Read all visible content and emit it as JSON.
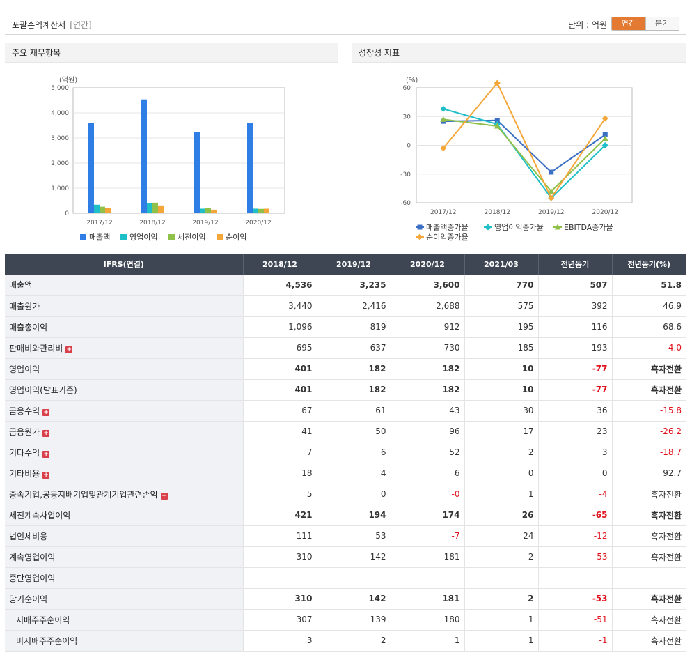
{
  "header": {
    "title": "포괄손익계산서",
    "period_tag": "[연간]",
    "unit": "단위 : 억원",
    "toggle_annual": "연간",
    "toggle_quarter": "분기"
  },
  "left_panel": {
    "title": "주요 재무항목"
  },
  "right_panel": {
    "title": "성장성 지표"
  },
  "chart_data": [
    {
      "type": "bar",
      "ylabel": "(억원)",
      "ylim": [
        0,
        5000
      ],
      "yticks": [
        "0",
        "1,000",
        "2,000",
        "3,000",
        "4,000",
        "5,000"
      ],
      "categories": [
        "2017/12",
        "2018/12",
        "2019/12",
        "2020/12"
      ],
      "series": [
        {
          "name": "매출액",
          "color": "#2f7ee6",
          "values": [
            3600,
            4536,
            3235,
            3600
          ]
        },
        {
          "name": "영업이익",
          "color": "#1fbfc7",
          "values": [
            340,
            401,
            182,
            182
          ]
        },
        {
          "name": "세전이익",
          "color": "#8fc04a",
          "values": [
            260,
            421,
            194,
            174
          ]
        },
        {
          "name": "순이익",
          "color": "#f5a638",
          "values": [
            210,
            310,
            142,
            181
          ]
        }
      ],
      "legend_position": "bottom"
    },
    {
      "type": "line",
      "ylabel": "(%)",
      "ylim": [
        -60,
        60
      ],
      "yticks": [
        "60",
        "30",
        "0",
        "-30",
        "-60"
      ],
      "categories": [
        "2017/12",
        "2018/12",
        "2019/12",
        "2020/12"
      ],
      "series": [
        {
          "name": "매출액증가율",
          "color": "#3a6fc4",
          "marker": "square",
          "values": [
            25,
            26,
            -28,
            11
          ]
        },
        {
          "name": "영업이익증가율",
          "color": "#1fbfc7",
          "marker": "diamond",
          "values": [
            38,
            22,
            -55,
            0
          ]
        },
        {
          "name": "EBITDA증가율",
          "color": "#8fc04a",
          "marker": "triangle",
          "values": [
            27,
            20,
            -48,
            7
          ]
        },
        {
          "name": "순이익증가율",
          "color": "#f5a638",
          "marker": "diamond",
          "values": [
            -3,
            65,
            -55,
            28
          ]
        }
      ],
      "legend_position": "bottom"
    }
  ],
  "table": {
    "columns": [
      "IFRS(연결)",
      "2018/12",
      "2019/12",
      "2020/12",
      "2021/03",
      "전년동기",
      "전년동기(%)"
    ],
    "rows": [
      {
        "label": "매출액",
        "bold": true,
        "values": [
          "4,536",
          "3,235",
          "3,600",
          "770",
          "507",
          "51.8"
        ]
      },
      {
        "label": "매출원가",
        "values": [
          "3,440",
          "2,416",
          "2,688",
          "575",
          "392",
          "46.9"
        ]
      },
      {
        "label": "매출총이익",
        "values": [
          "1,096",
          "819",
          "912",
          "195",
          "116",
          "68.6"
        ]
      },
      {
        "label": "판매비와관리비",
        "plus": true,
        "values": [
          "695",
          "637",
          "730",
          "185",
          "193",
          "-4.0"
        ]
      },
      {
        "label": "영업이익",
        "bold": true,
        "values": [
          "401",
          "182",
          "182",
          "10",
          "-77",
          "흑자전환"
        ]
      },
      {
        "label": "영업이익(발표기준)",
        "bold": true,
        "values": [
          "401",
          "182",
          "182",
          "10",
          "-77",
          "흑자전환"
        ]
      },
      {
        "label": "금융수익",
        "plus": true,
        "values": [
          "67",
          "61",
          "43",
          "30",
          "36",
          "-15.8"
        ]
      },
      {
        "label": "금융원가",
        "plus": true,
        "values": [
          "41",
          "50",
          "96",
          "17",
          "23",
          "-26.2"
        ]
      },
      {
        "label": "기타수익",
        "plus": true,
        "values": [
          "7",
          "6",
          "52",
          "2",
          "3",
          "-18.7"
        ]
      },
      {
        "label": "기타비용",
        "plus": true,
        "values": [
          "18",
          "4",
          "6",
          "0",
          "0",
          "92.7"
        ]
      },
      {
        "label": "종속기업,공동지배기업및관계기업관련손익",
        "plus": true,
        "values": [
          "5",
          "0",
          "-0",
          "1",
          "-4",
          "흑자전환"
        ]
      },
      {
        "label": "세전계속사업이익",
        "bold": true,
        "values": [
          "421",
          "194",
          "174",
          "26",
          "-65",
          "흑자전환"
        ]
      },
      {
        "label": "법인세비용",
        "values": [
          "111",
          "53",
          "-7",
          "24",
          "-12",
          "흑자전환"
        ]
      },
      {
        "label": "계속영업이익",
        "values": [
          "310",
          "142",
          "181",
          "2",
          "-53",
          "흑자전환"
        ]
      },
      {
        "label": "중단영업이익",
        "values": [
          "",
          "",
          "",
          "",
          "",
          ""
        ]
      },
      {
        "label": "당기순이익",
        "bold": true,
        "values": [
          "310",
          "142",
          "181",
          "2",
          "-53",
          "흑자전환"
        ]
      },
      {
        "label": "지배주주순이익",
        "indent": true,
        "values": [
          "307",
          "139",
          "180",
          "1",
          "-51",
          "흑자전환"
        ]
      },
      {
        "label": "비지배주주순이익",
        "indent": true,
        "values": [
          "3",
          "2",
          "1",
          "1",
          "-1",
          "흑자전환"
        ]
      }
    ]
  }
}
